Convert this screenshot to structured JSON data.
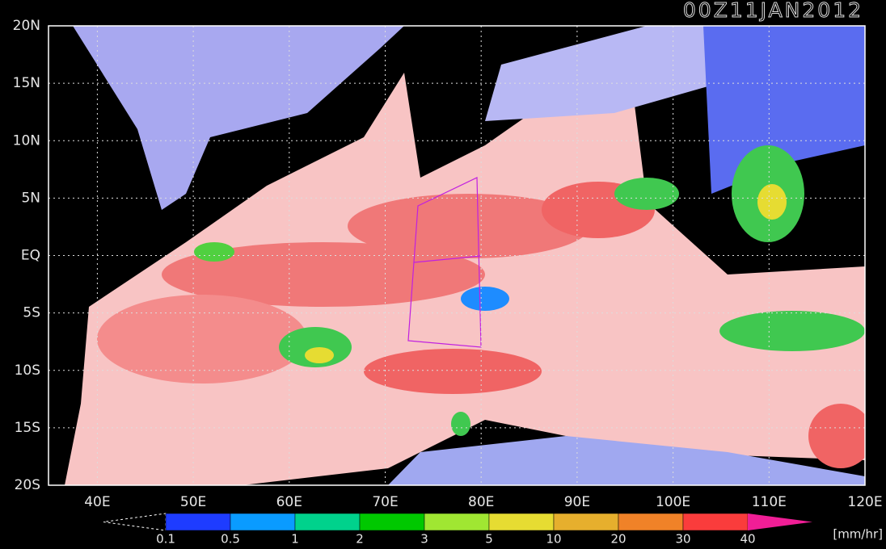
{
  "title": "00Z11JAN2012",
  "map": {
    "lat_labels": [
      "20N",
      "15N",
      "10N",
      "5N",
      "EQ",
      "5S",
      "10S",
      "15S",
      "20S"
    ],
    "lon_labels": [
      "40E",
      "50E",
      "60E",
      "70E",
      "80E",
      "90E",
      "100E",
      "110E",
      "120E"
    ],
    "grid": true
  },
  "colorbar": {
    "levels": [
      0.1,
      0.5,
      1,
      2,
      3,
      5,
      10,
      20,
      30,
      40
    ],
    "colors": [
      "#1e3cff",
      "#0a9bff",
      "#00d28c",
      "#00c800",
      "#a0e632",
      "#e6dc32",
      "#e6af2d",
      "#f08228",
      "#fa3c3c",
      "#f01e96"
    ],
    "unit": "[mm/hr]"
  }
}
